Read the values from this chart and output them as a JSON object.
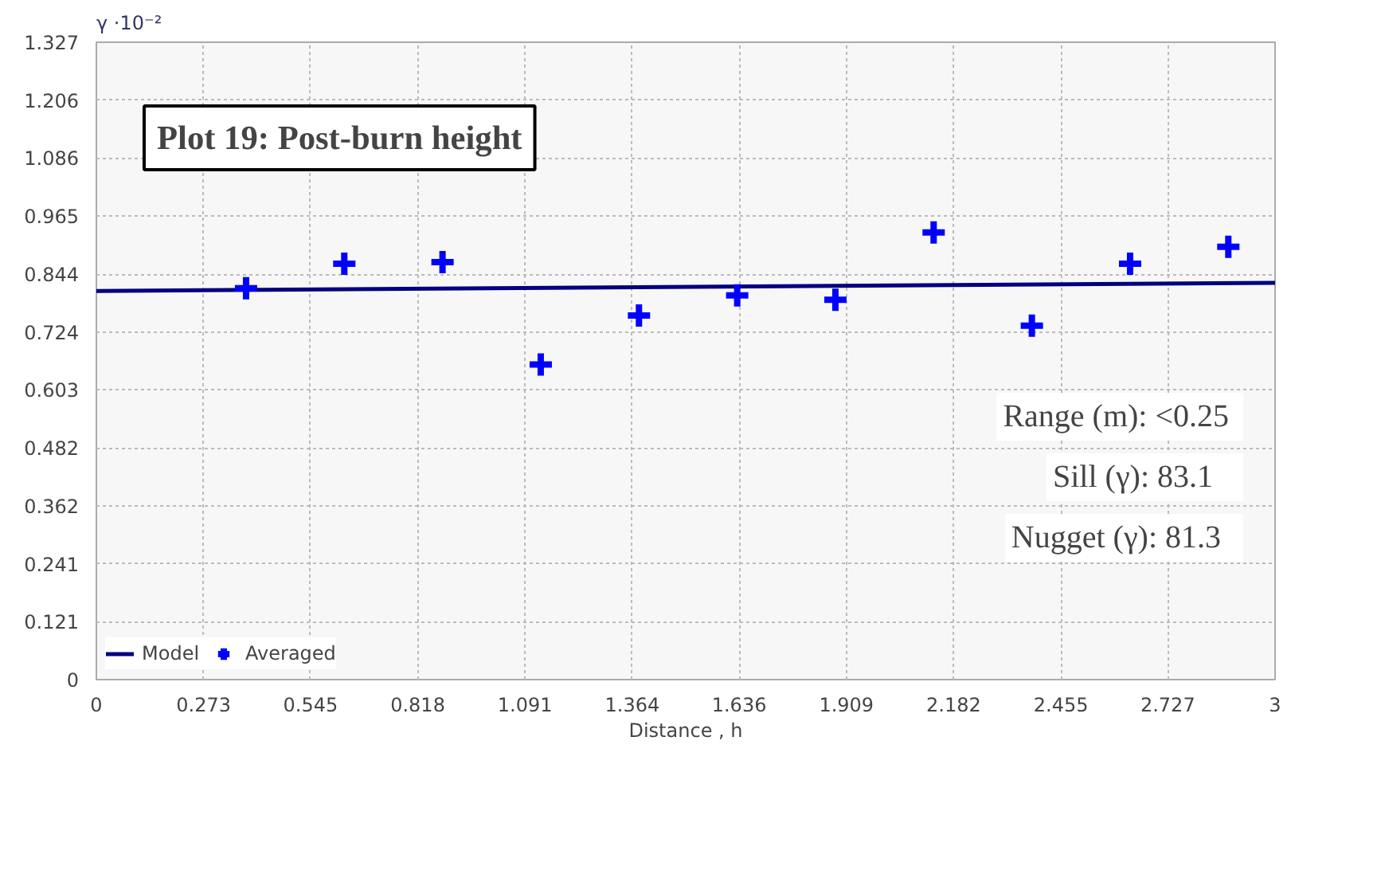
{
  "chart_data": {
    "type": "scatter",
    "title": "Plot 19: Post-burn height",
    "xlabel": "Distance , h",
    "ylabel": "γ ·10⁻²",
    "xlim": [
      0,
      3
    ],
    "ylim": [
      0,
      1.327
    ],
    "xticks": [
      0,
      0.273,
      0.545,
      0.818,
      1.091,
      1.364,
      1.636,
      1.909,
      2.182,
      2.455,
      2.727,
      3
    ],
    "yticks": [
      0,
      0.121,
      0.241,
      0.362,
      0.482,
      0.603,
      0.724,
      0.844,
      0.965,
      1.086,
      1.206,
      1.327
    ],
    "grid": true,
    "legend": "bottom left",
    "series": [
      {
        "name": "Model",
        "type": "line",
        "color": "#000080",
        "x": [
          0,
          3
        ],
        "values": [
          0.809,
          0.826
        ]
      },
      {
        "name": "Averaged",
        "color": "#0000ff",
        "marker": "cross",
        "x": [
          0.381,
          0.631,
          0.881,
          1.131,
          1.381,
          1.631,
          1.881,
          2.131,
          2.381,
          2.631,
          2.881
        ],
        "values": [
          0.815,
          0.866,
          0.869,
          0.656,
          0.758,
          0.8,
          0.791,
          0.931,
          0.737,
          0.866,
          0.901
        ]
      }
    ],
    "annotations": [
      "Range (m):  <0.25",
      "Sill (γ):    83.1",
      "Nugget (γ):   81.3"
    ]
  }
}
